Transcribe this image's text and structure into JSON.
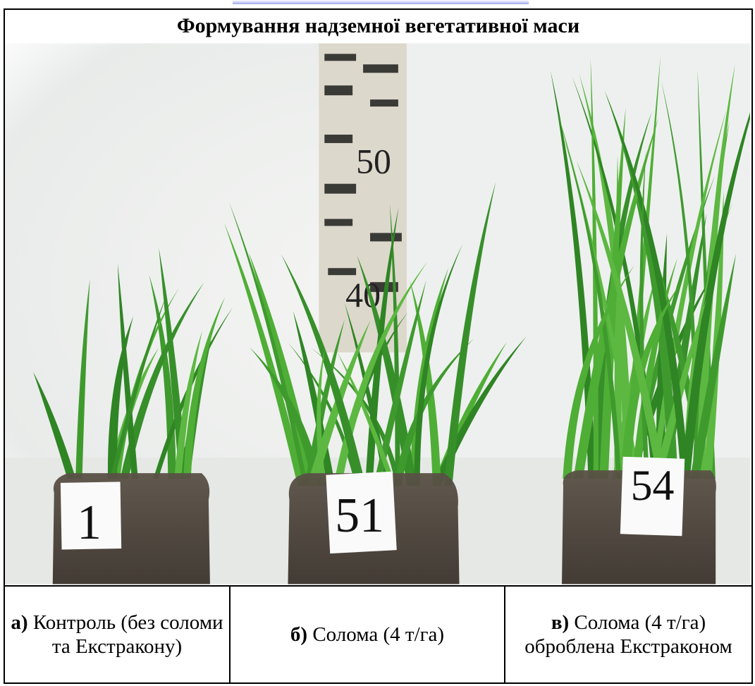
{
  "figure": {
    "title": "Формування надземної вегетативної маси",
    "photo": {
      "labels": [
        "1",
        "51",
        "54"
      ],
      "ruler_marks": [
        "50",
        "40"
      ]
    },
    "captions": [
      {
        "letter": "а)",
        "text": "Контроль (без соломи та Екстракону)"
      },
      {
        "letter": "б)",
        "text": "Солома (4 т/га)"
      },
      {
        "letter": "в)",
        "text": "Солома (4 т/га) оброблена Екстраконом"
      }
    ]
  }
}
